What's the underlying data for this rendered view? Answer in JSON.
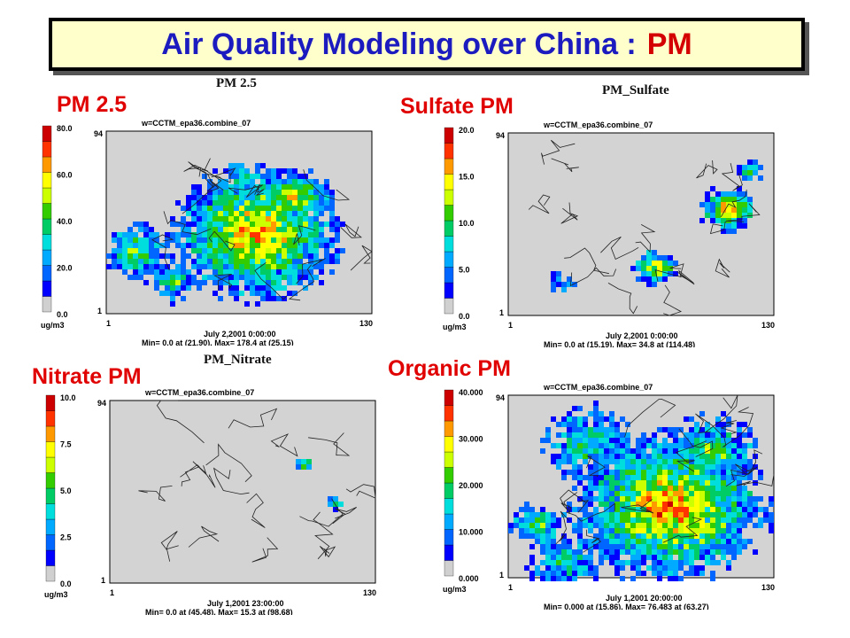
{
  "title": {
    "main": "Air Quality Modeling over China :",
    "accent": "PM"
  },
  "panels": [
    {
      "key": "pm25",
      "label": "PM 2.5",
      "map_title": "PM 2.5",
      "run": "w=CCTM_epa36.combine_07",
      "colorbar": [
        "80.0",
        "60.0",
        "40.0",
        "20.0",
        "0.0"
      ],
      "unit": "ug/m3",
      "row_max": "94",
      "row_min": "1",
      "col_min": "1",
      "col_max": "130",
      "time": "July 2,2001 0:00:00",
      "stats": "Min=     0.0 at (21,90), Max=    178.4 at (25,15)"
    },
    {
      "key": "sulfate",
      "label": "Sulfate PM",
      "map_title": "PM_Sulfate",
      "run": "w=CCTM_epa36.combine_07",
      "colorbar": [
        "20.0",
        "15.0",
        "10.0",
        "5.0",
        "0.0"
      ],
      "unit": "ug/m3",
      "row_max": "94",
      "row_min": "1",
      "col_min": "1",
      "col_max": "130",
      "time": "July 2,2001 0:00:00",
      "stats": "Min=     0.0 at (15,19), Max=     34.8 at (114,48)"
    },
    {
      "key": "nitrate",
      "label": "Nitrate PM",
      "map_title": "PM_Nitrate",
      "run": "w=CCTM_epa36.combine_07",
      "colorbar": [
        "10.0",
        "7.5",
        "5.0",
        "2.5",
        "0.0"
      ],
      "unit": "ug/m3",
      "row_max": "94",
      "row_min": "1",
      "col_min": "1",
      "col_max": "130",
      "time": "July 1,2001 23:00:00",
      "stats": "Min=     0.0 at (45,48), Max=     15.3 at (98,68)"
    },
    {
      "key": "organic",
      "label": "Organic PM",
      "map_title": "",
      "run": "w=CCTM_epa36.combine_07",
      "colorbar": [
        "40.000",
        "30.000",
        "20.000",
        "10.000",
        "0.000"
      ],
      "unit": "ug/m3",
      "row_max": "94",
      "row_min": "1",
      "col_min": "1",
      "col_max": "130",
      "time": "July 1,2001 20:00:00",
      "stats": "Min=  0.000 at (15,86), Max=  76.483 at (63,27)"
    }
  ],
  "colorscale": [
    "#d0d0d0",
    "#0000ff",
    "#0066ff",
    "#00aaff",
    "#00dddd",
    "#00cc66",
    "#33cc00",
    "#ccff00",
    "#ffff00",
    "#ff9900",
    "#ff3300",
    "#cc0000"
  ]
}
